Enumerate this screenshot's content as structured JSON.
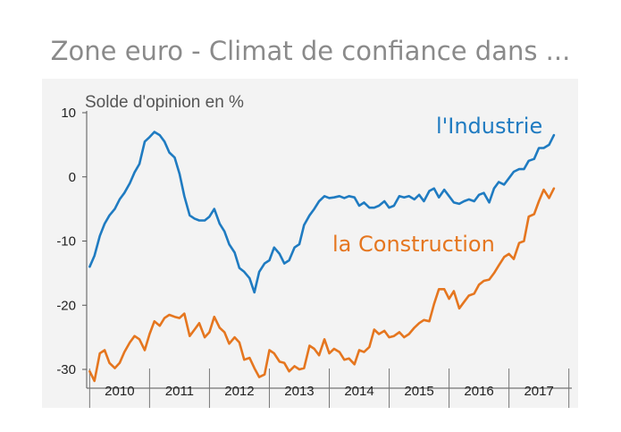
{
  "chart_data": {
    "type": "line",
    "title": "Zone euro - Climat de confiance dans ...",
    "ylabel": "Solde d'opinion en %",
    "ylim": [
      -32,
      10
    ],
    "yticks": [
      10,
      0,
      -10,
      -20,
      -30
    ],
    "xlim": [
      2009.95,
      2018.05
    ],
    "years": [
      "2010",
      "2011",
      "2012",
      "2013",
      "2014",
      "2015",
      "2016",
      "2017"
    ],
    "grid": false,
    "series": [
      {
        "name": "l'Industrie",
        "color": "#1f7bc1",
        "points": [
          [
            2010.0,
            -14.0
          ],
          [
            2010.08,
            -12.3
          ],
          [
            2010.17,
            -9.2
          ],
          [
            2010.25,
            -7.3
          ],
          [
            2010.33,
            -6.0
          ],
          [
            2010.42,
            -5.0
          ],
          [
            2010.5,
            -3.5
          ],
          [
            2010.58,
            -2.5
          ],
          [
            2010.67,
            -1.0
          ],
          [
            2010.75,
            0.7
          ],
          [
            2010.83,
            2.0
          ],
          [
            2010.92,
            5.5
          ],
          [
            2011.0,
            6.2
          ],
          [
            2011.08,
            7.0
          ],
          [
            2011.17,
            6.5
          ],
          [
            2011.25,
            5.5
          ],
          [
            2011.33,
            3.8
          ],
          [
            2011.42,
            3.0
          ],
          [
            2011.5,
            0.5
          ],
          [
            2011.58,
            -3.0
          ],
          [
            2011.67,
            -6.0
          ],
          [
            2011.75,
            -6.5
          ],
          [
            2011.83,
            -6.8
          ],
          [
            2011.92,
            -6.8
          ],
          [
            2012.0,
            -6.2
          ],
          [
            2012.08,
            -5.0
          ],
          [
            2012.17,
            -7.3
          ],
          [
            2012.25,
            -8.5
          ],
          [
            2012.33,
            -10.5
          ],
          [
            2012.42,
            -11.8
          ],
          [
            2012.5,
            -14.2
          ],
          [
            2012.58,
            -14.8
          ],
          [
            2012.67,
            -15.8
          ],
          [
            2012.75,
            -18.0
          ],
          [
            2012.83,
            -14.8
          ],
          [
            2012.92,
            -13.5
          ],
          [
            2013.0,
            -13.0
          ],
          [
            2013.08,
            -11.0
          ],
          [
            2013.17,
            -12.0
          ],
          [
            2013.25,
            -13.5
          ],
          [
            2013.33,
            -13.0
          ],
          [
            2013.42,
            -11.0
          ],
          [
            2013.5,
            -10.5
          ],
          [
            2013.58,
            -7.5
          ],
          [
            2013.67,
            -6.0
          ],
          [
            2013.75,
            -5.0
          ],
          [
            2013.83,
            -3.8
          ],
          [
            2013.92,
            -3.0
          ],
          [
            2014.0,
            -3.3
          ],
          [
            2014.08,
            -3.2
          ],
          [
            2014.17,
            -3.0
          ],
          [
            2014.25,
            -3.3
          ],
          [
            2014.33,
            -3.0
          ],
          [
            2014.42,
            -3.2
          ],
          [
            2014.5,
            -4.5
          ],
          [
            2014.58,
            -4.0
          ],
          [
            2014.67,
            -4.8
          ],
          [
            2014.75,
            -4.8
          ],
          [
            2014.83,
            -4.5
          ],
          [
            2014.92,
            -3.8
          ],
          [
            2015.0,
            -4.8
          ],
          [
            2015.08,
            -4.5
          ],
          [
            2015.17,
            -3.0
          ],
          [
            2015.25,
            -3.2
          ],
          [
            2015.33,
            -3.0
          ],
          [
            2015.42,
            -3.5
          ],
          [
            2015.5,
            -2.8
          ],
          [
            2015.58,
            -3.8
          ],
          [
            2015.67,
            -2.2
          ],
          [
            2015.75,
            -1.8
          ],
          [
            2015.83,
            -3.2
          ],
          [
            2015.92,
            -2.0
          ],
          [
            2016.0,
            -3.0
          ],
          [
            2016.08,
            -4.0
          ],
          [
            2016.17,
            -4.2
          ],
          [
            2016.25,
            -3.8
          ],
          [
            2016.33,
            -3.5
          ],
          [
            2016.42,
            -3.8
          ],
          [
            2016.5,
            -2.8
          ],
          [
            2016.58,
            -2.5
          ],
          [
            2016.67,
            -4.0
          ],
          [
            2016.75,
            -1.8
          ],
          [
            2016.83,
            -0.8
          ],
          [
            2016.92,
            -1.2
          ],
          [
            2017.0,
            -0.2
          ],
          [
            2017.08,
            0.8
          ],
          [
            2017.17,
            1.2
          ],
          [
            2017.25,
            1.2
          ],
          [
            2017.33,
            2.5
          ],
          [
            2017.42,
            2.8
          ],
          [
            2017.5,
            4.5
          ],
          [
            2017.58,
            4.5
          ],
          [
            2017.67,
            5.0
          ],
          [
            2017.75,
            6.5
          ]
        ]
      },
      {
        "name": "la Construction",
        "color": "#e5761f",
        "points": [
          [
            2010.0,
            -30.3
          ],
          [
            2010.08,
            -31.8
          ],
          [
            2010.17,
            -27.5
          ],
          [
            2010.25,
            -27.0
          ],
          [
            2010.33,
            -29.0
          ],
          [
            2010.42,
            -29.8
          ],
          [
            2010.5,
            -29.0
          ],
          [
            2010.58,
            -27.3
          ],
          [
            2010.67,
            -25.8
          ],
          [
            2010.75,
            -24.8
          ],
          [
            2010.83,
            -25.3
          ],
          [
            2010.92,
            -27.0
          ],
          [
            2011.0,
            -24.5
          ],
          [
            2011.08,
            -22.5
          ],
          [
            2011.17,
            -23.2
          ],
          [
            2011.25,
            -22.0
          ],
          [
            2011.33,
            -21.5
          ],
          [
            2011.42,
            -21.8
          ],
          [
            2011.5,
            -22.0
          ],
          [
            2011.58,
            -21.3
          ],
          [
            2011.67,
            -24.8
          ],
          [
            2011.75,
            -23.8
          ],
          [
            2011.83,
            -22.8
          ],
          [
            2011.92,
            -25.0
          ],
          [
            2012.0,
            -24.2
          ],
          [
            2012.08,
            -21.8
          ],
          [
            2012.17,
            -23.5
          ],
          [
            2012.25,
            -24.2
          ],
          [
            2012.33,
            -26.0
          ],
          [
            2012.42,
            -25.0
          ],
          [
            2012.5,
            -25.8
          ],
          [
            2012.58,
            -28.5
          ],
          [
            2012.67,
            -28.2
          ],
          [
            2012.75,
            -29.8
          ],
          [
            2012.83,
            -31.2
          ],
          [
            2012.92,
            -30.8
          ],
          [
            2013.0,
            -27.0
          ],
          [
            2013.08,
            -27.5
          ],
          [
            2013.17,
            -28.8
          ],
          [
            2013.25,
            -29.0
          ],
          [
            2013.33,
            -30.3
          ],
          [
            2013.42,
            -29.5
          ],
          [
            2013.5,
            -30.0
          ],
          [
            2013.58,
            -29.8
          ],
          [
            2013.67,
            -26.3
          ],
          [
            2013.75,
            -26.8
          ],
          [
            2013.83,
            -27.8
          ],
          [
            2013.92,
            -25.3
          ],
          [
            2014.0,
            -27.5
          ],
          [
            2014.08,
            -26.8
          ],
          [
            2014.17,
            -27.3
          ],
          [
            2014.25,
            -28.5
          ],
          [
            2014.33,
            -28.3
          ],
          [
            2014.42,
            -29.2
          ],
          [
            2014.5,
            -27.0
          ],
          [
            2014.58,
            -27.3
          ],
          [
            2014.67,
            -26.5
          ],
          [
            2014.75,
            -23.8
          ],
          [
            2014.83,
            -24.5
          ],
          [
            2014.92,
            -24.0
          ],
          [
            2015.0,
            -25.0
          ],
          [
            2015.08,
            -24.8
          ],
          [
            2015.17,
            -24.2
          ],
          [
            2015.25,
            -25.0
          ],
          [
            2015.33,
            -24.5
          ],
          [
            2015.42,
            -23.5
          ],
          [
            2015.5,
            -22.8
          ],
          [
            2015.58,
            -22.3
          ],
          [
            2015.67,
            -22.5
          ],
          [
            2015.75,
            -19.8
          ],
          [
            2015.83,
            -17.5
          ],
          [
            2015.92,
            -17.5
          ],
          [
            2016.0,
            -19.0
          ],
          [
            2016.08,
            -17.8
          ],
          [
            2016.17,
            -20.5
          ],
          [
            2016.25,
            -19.5
          ],
          [
            2016.33,
            -18.5
          ],
          [
            2016.42,
            -18.2
          ],
          [
            2016.5,
            -16.8
          ],
          [
            2016.58,
            -16.2
          ],
          [
            2016.67,
            -16.0
          ],
          [
            2016.75,
            -15.0
          ],
          [
            2016.83,
            -13.8
          ],
          [
            2016.92,
            -12.5
          ],
          [
            2017.0,
            -12.0
          ],
          [
            2017.08,
            -12.8
          ],
          [
            2017.17,
            -10.3
          ],
          [
            2017.25,
            -10.0
          ],
          [
            2017.33,
            -6.2
          ],
          [
            2017.42,
            -5.8
          ],
          [
            2017.5,
            -3.8
          ],
          [
            2017.58,
            -2.0
          ],
          [
            2017.67,
            -3.3
          ],
          [
            2017.75,
            -1.8
          ]
        ]
      }
    ]
  }
}
